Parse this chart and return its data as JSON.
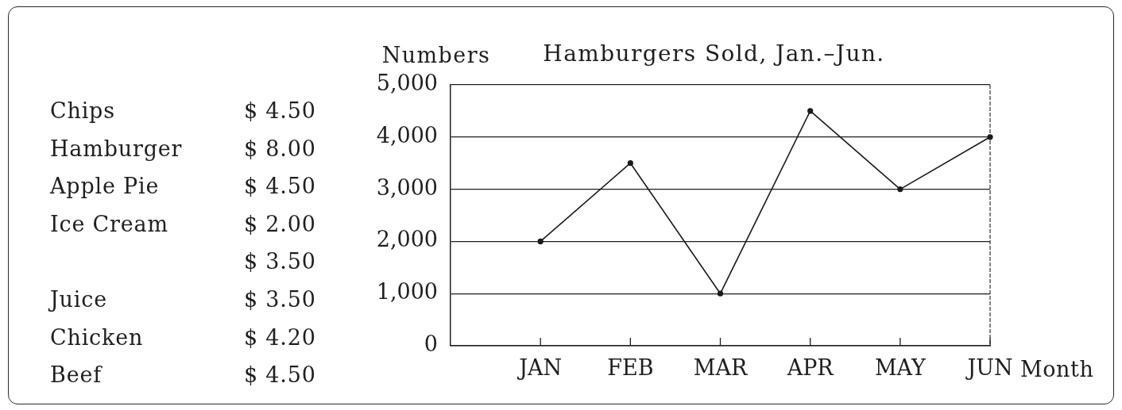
{
  "chart_data": [
    {
      "type": "other",
      "categories": [
        "Chips",
        "Hamburger",
        "Apple Pie",
        "Ice Cream",
        null,
        "Juice",
        "Chicken",
        "Beef"
      ],
      "value_labels": [
        "$ 4.50",
        "$ 8.00",
        "$ 4.50",
        "$ 2.00",
        "$ 3.50",
        "$ 3.50",
        "$ 4.20",
        "$ 4.50"
      ]
    },
    {
      "type": "line",
      "title": "Hamburgers Sold, Jan.–Jun.",
      "ylabel": "Numbers",
      "xlabel": "Month",
      "categories": [
        "JAN",
        "FEB",
        "MAR",
        "APR",
        "MAY",
        "JUN"
      ],
      "series": [
        {
          "color": "#1a1a1a",
          "values": [
            2000,
            3500,
            1000,
            4500,
            3000,
            4000
          ]
        }
      ],
      "ylim": [
        0,
        5000
      ],
      "yticks": [
        0,
        {
          "value": 1000,
          "label": "1,000"
        },
        {
          "value": 2000,
          "label": "2,000"
        },
        {
          "value": 3000,
          "label": "3,000"
        },
        {
          "value": 4000,
          "label": "4,000"
        },
        {
          "value": 5000,
          "label": "5,000"
        }
      ],
      "grid": "y",
      "legend": false,
      "marker": "circle",
      "line_style": "solid"
    }
  ]
}
